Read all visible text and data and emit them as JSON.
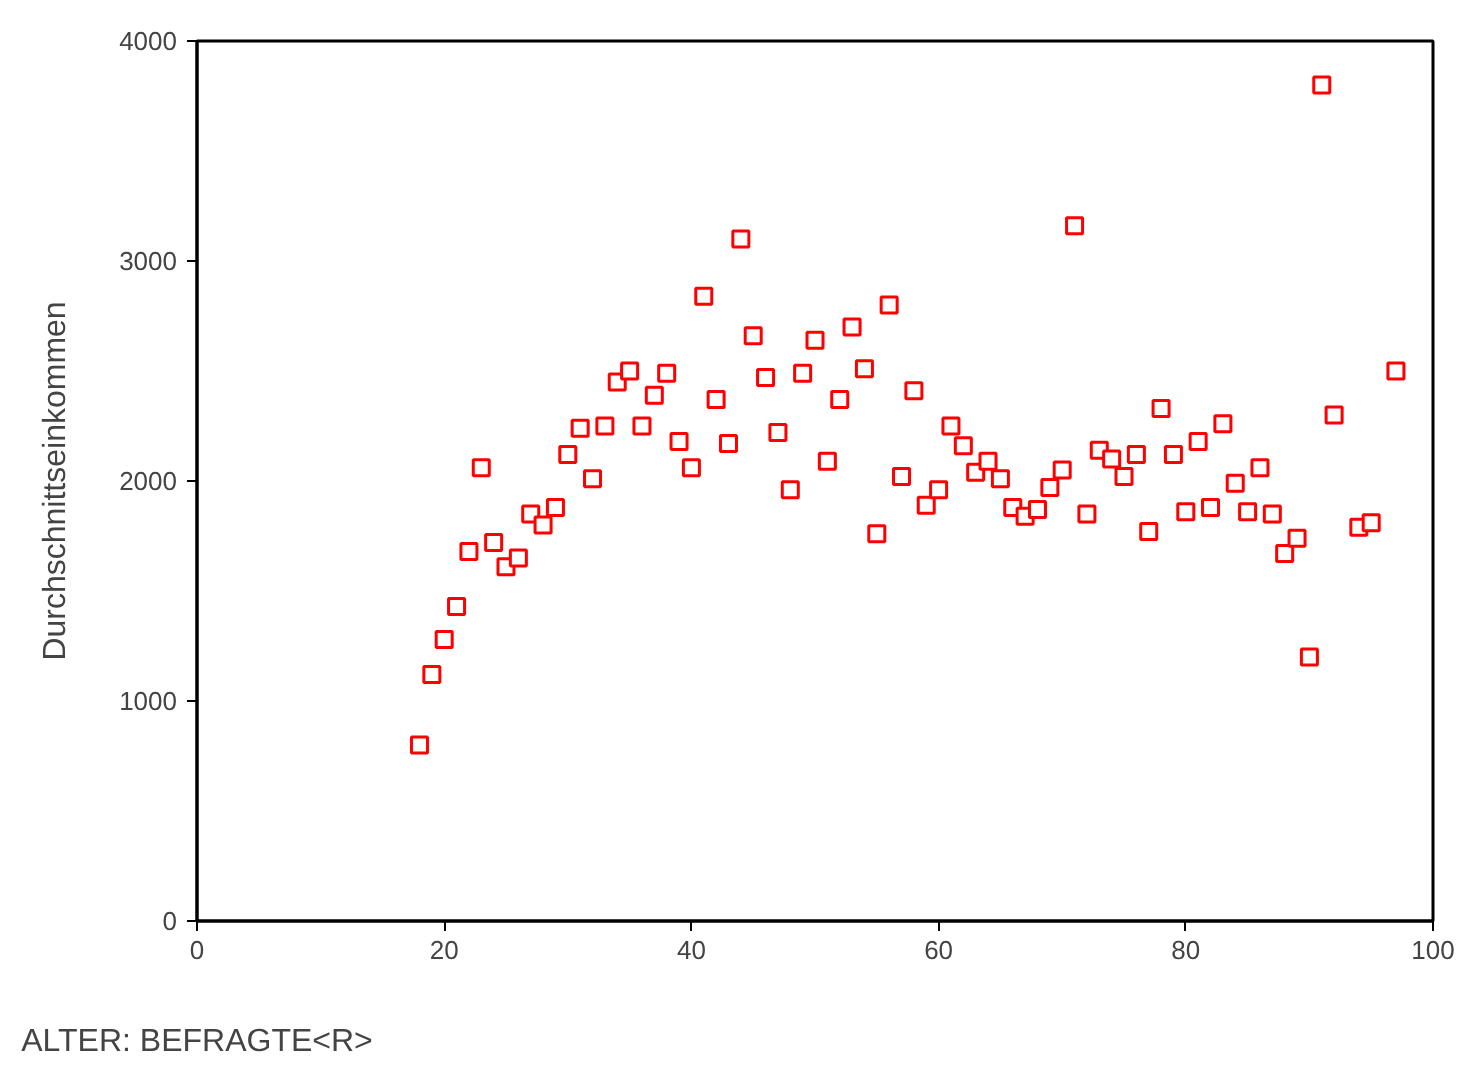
{
  "chart_data": {
    "type": "scatter",
    "xlabel": "ALTER: BEFRAGTE<R>",
    "ylabel": "Durchschnittseinkommen",
    "x": [
      18,
      19,
      20,
      21,
      22,
      23,
      24,
      25,
      26,
      27,
      28,
      29,
      30,
      31,
      32,
      33,
      34,
      35,
      36,
      37,
      38,
      39,
      40,
      41,
      42,
      43,
      44,
      45,
      46,
      47,
      48,
      49,
      50,
      51,
      52,
      53,
      54,
      55,
      56,
      57,
      58,
      59,
      60,
      61,
      62,
      63,
      64,
      65,
      66,
      67,
      68,
      69,
      70,
      71,
      72,
      73,
      74,
      75,
      76,
      77,
      78,
      79,
      80,
      81,
      82,
      83,
      84,
      85,
      86,
      87,
      88,
      89,
      90,
      91,
      92,
      94,
      95,
      97
    ],
    "series": [
      {
        "color": "#ff0000",
        "values": [
          800,
          1120,
          1280,
          1430,
          1680,
          2060,
          1720,
          1610,
          1650,
          1850,
          1800,
          1880,
          2120,
          2240,
          2010,
          2250,
          2450,
          2500,
          2250,
          2390,
          2490,
          2180,
          2060,
          2840,
          2370,
          2170,
          3100,
          2660,
          2470,
          2220,
          1960,
          2490,
          2640,
          2090,
          2370,
          2700,
          2510,
          1760,
          2800,
          2020,
          2410,
          1890,
          1960,
          2250,
          2160,
          2040,
          2090,
          2010,
          1880,
          1840,
          1870,
          1970,
          2050,
          3160,
          1850,
          2140,
          2100,
          2020,
          2120,
          1770,
          2330,
          2120,
          1860,
          2180,
          1880,
          2260,
          1990,
          1860,
          2060,
          1850,
          1670,
          1740,
          1200,
          3800,
          2300,
          1790,
          1810,
          2500
        ]
      }
    ],
    "marker": "square",
    "xlim": [
      0,
      100
    ],
    "ylim": [
      0,
      4000
    ],
    "xticks": [
      0,
      20,
      40,
      60,
      80,
      100
    ],
    "yticks": [
      0,
      1000,
      2000,
      3000,
      4000
    ],
    "grid": false
  }
}
